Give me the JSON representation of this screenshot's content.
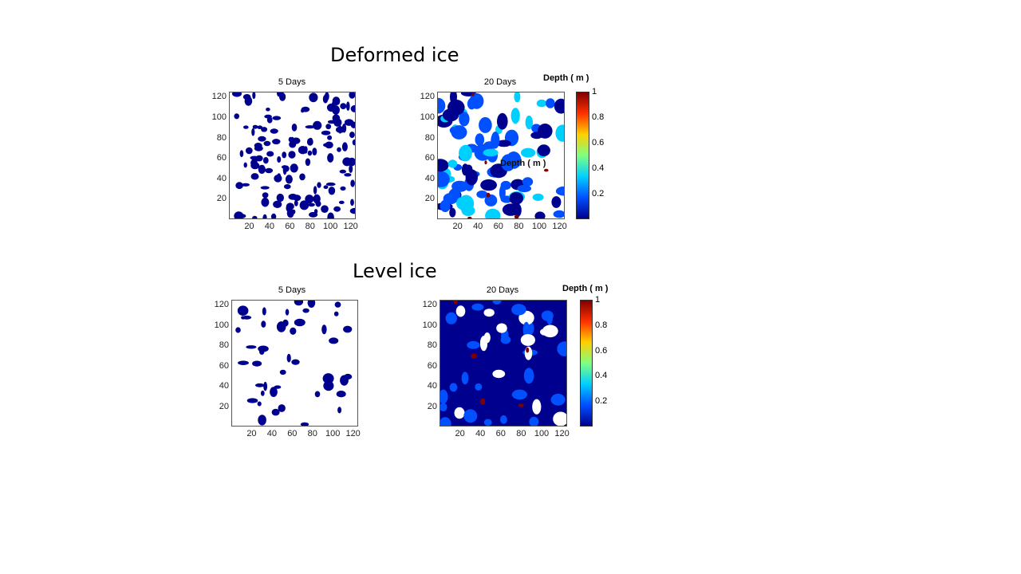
{
  "sections": {
    "deformed_title": "Deformed ice",
    "level_title": "Level ice"
  },
  "colorbar": {
    "label": "Depth ( m )",
    "ticks": [
      "1",
      "0.8",
      "0.6",
      "0.4",
      "0.2"
    ],
    "tick_values": [
      1,
      0.8,
      0.6,
      0.4,
      0.2
    ],
    "range": [
      0,
      1
    ],
    "colors": [
      "#00008f",
      "#0050ff",
      "#00d0ff",
      "#80ff80",
      "#ffd000",
      "#ff3000",
      "#800000"
    ]
  },
  "overlay_text": "Depth ( m )",
  "chart_data": [
    {
      "type": "heatmap",
      "title": "5 Days",
      "group": "Deformed ice",
      "xticks": [
        "20",
        "40",
        "60",
        "80",
        "100",
        "120"
      ],
      "yticks": [
        "120",
        "100",
        "80",
        "60",
        "40",
        "20"
      ],
      "xlim": [
        0,
        125
      ],
      "ylim": [
        0,
        125
      ],
      "colormap": "jet",
      "dominant_color": "#0a0a96",
      "coverage": 0.25
    },
    {
      "type": "heatmap",
      "title": "20 Days",
      "group": "Deformed ice",
      "xticks": [
        "20",
        "40",
        "60",
        "80",
        "100",
        "120"
      ],
      "yticks": [
        "120",
        "100",
        "80",
        "60",
        "40",
        "20"
      ],
      "xlim": [
        0,
        125
      ],
      "ylim": [
        0,
        125
      ],
      "colormap": "jet",
      "colorbar_label": "Depth ( m )",
      "colorbar_range": [
        0,
        1
      ],
      "colorbar_ticks": [
        0.2,
        0.4,
        0.6,
        0.8,
        1
      ],
      "coverage": 0.5
    },
    {
      "type": "heatmap",
      "title": "5 Days",
      "group": "Level ice",
      "xticks": [
        "20",
        "40",
        "60",
        "80",
        "100",
        "120"
      ],
      "yticks": [
        "120",
        "100",
        "80",
        "60",
        "40",
        "20"
      ],
      "xlim": [
        0,
        125
      ],
      "ylim": [
        0,
        125
      ],
      "colormap": "jet",
      "dominant_color": "#0a0a96",
      "coverage": 0.1
    },
    {
      "type": "heatmap",
      "title": "20 Days",
      "group": "Level ice",
      "xticks": [
        "20",
        "40",
        "60",
        "80",
        "100",
        "120"
      ],
      "yticks": [
        "120",
        "100",
        "80",
        "60",
        "40",
        "20"
      ],
      "xlim": [
        0,
        125
      ],
      "ylim": [
        0,
        125
      ],
      "colormap": "jet",
      "colorbar_label": "Depth ( m )",
      "colorbar_range": [
        0,
        1
      ],
      "colorbar_ticks": [
        0.2,
        0.4,
        0.6,
        0.8,
        1
      ],
      "coverage": 0.85
    }
  ]
}
